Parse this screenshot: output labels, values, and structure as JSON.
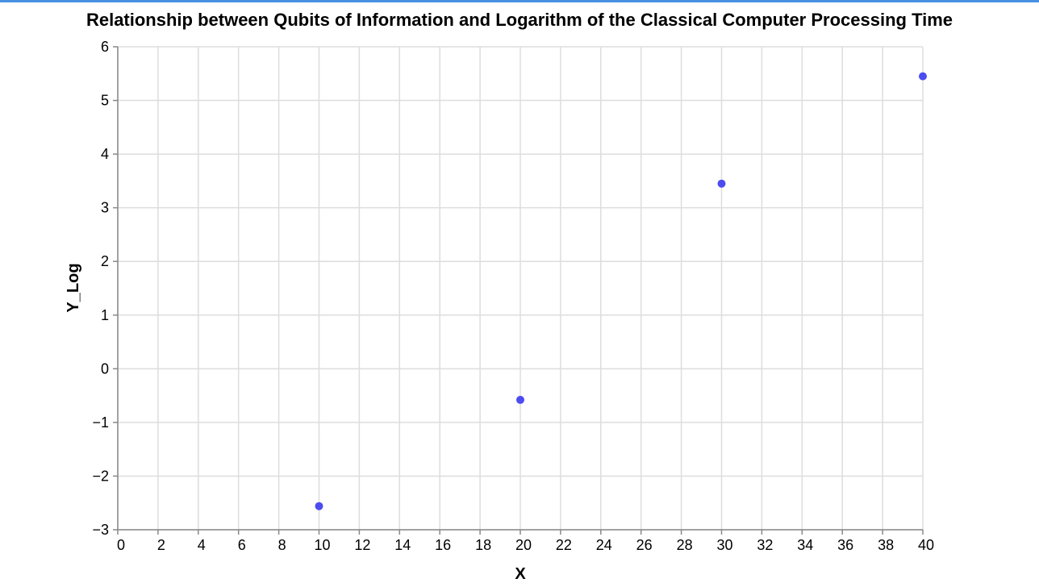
{
  "theme": {
    "accent_rule": "#4a90e2",
    "point_color": "#4c4cf0",
    "grid_color": "#dddddd",
    "axis_color": "#888888"
  },
  "chart_data": {
    "type": "scatter",
    "title": "Relationship between Qubits of Information and Logarithm of the Classical Computer Processing Time",
    "xlabel": "X",
    "ylabel": "Y_Log",
    "xlim": [
      0,
      40
    ],
    "ylim": [
      -3,
      6
    ],
    "xticks": [
      0,
      2,
      4,
      6,
      8,
      10,
      12,
      14,
      16,
      18,
      20,
      22,
      24,
      26,
      28,
      30,
      32,
      34,
      36,
      38,
      40
    ],
    "yticks": [
      -3,
      -2,
      -1,
      0,
      1,
      2,
      3,
      4,
      5,
      6
    ],
    "xtick_labels": [
      "0",
      "2",
      "4",
      "6",
      "8",
      "10",
      "12",
      "14",
      "16",
      "18",
      "20",
      "22",
      "24",
      "26",
      "28",
      "30",
      "32",
      "34",
      "36",
      "38",
      "40"
    ],
    "ytick_labels": [
      "−3",
      "−2",
      "−1",
      "0",
      "1",
      "2",
      "3",
      "4",
      "5",
      "6"
    ],
    "grid": true,
    "points": [
      {
        "x": 10,
        "y": -2.56
      },
      {
        "x": 20,
        "y": -0.58
      },
      {
        "x": 30,
        "y": 3.45
      },
      {
        "x": 40,
        "y": 5.45
      }
    ]
  }
}
